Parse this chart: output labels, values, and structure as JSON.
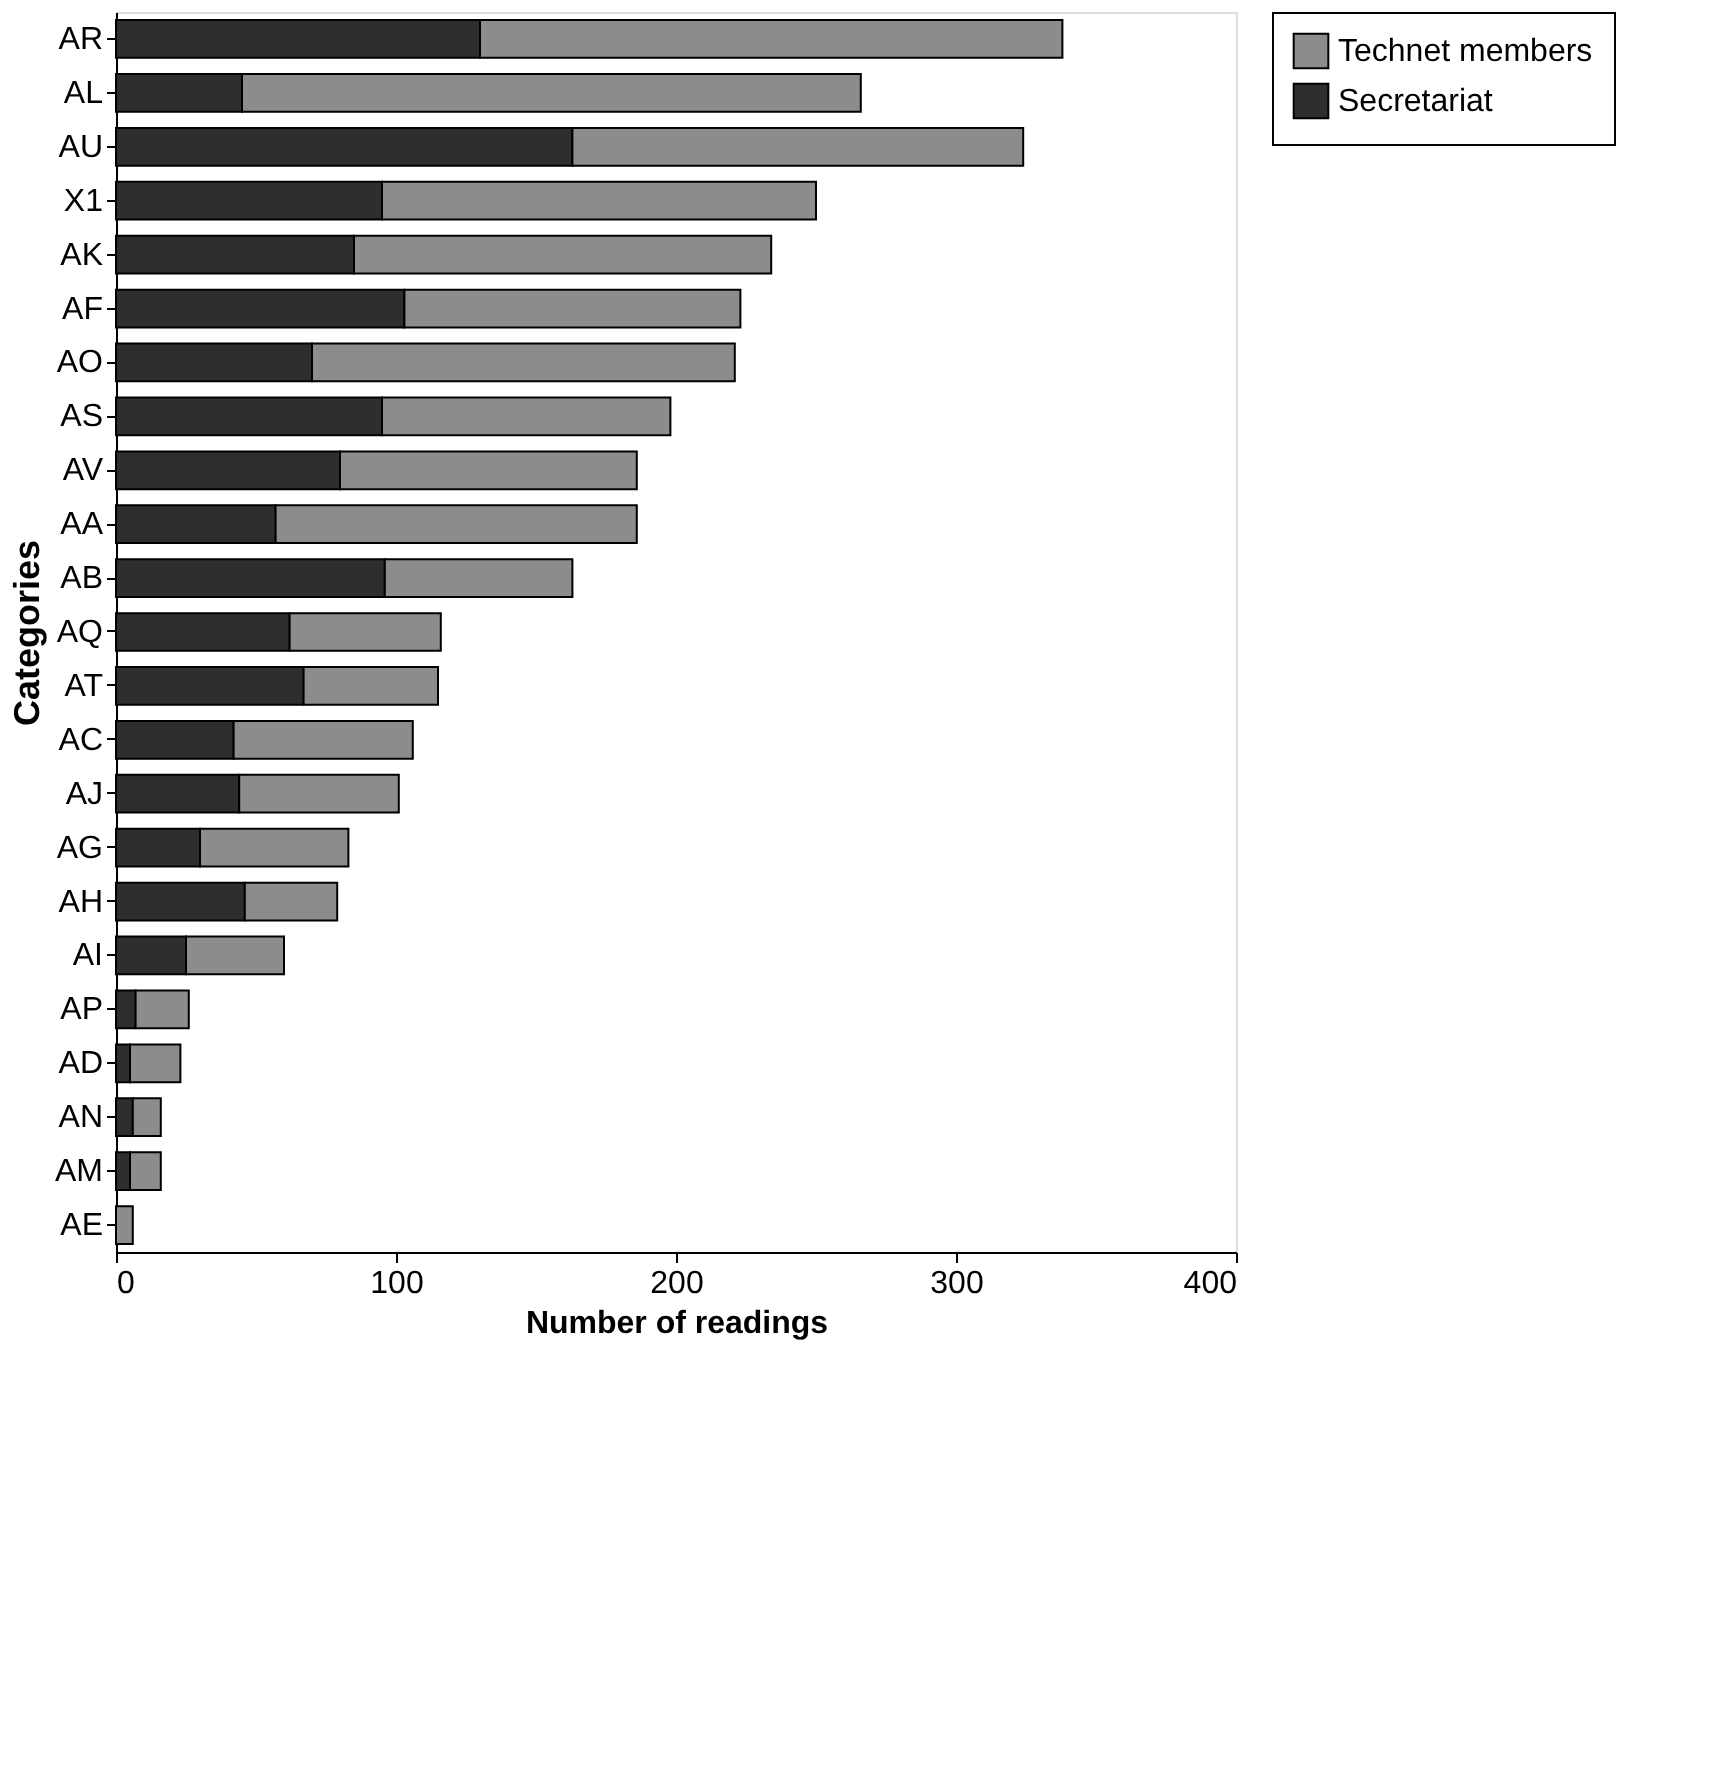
{
  "chart_data": {
    "type": "bar",
    "orientation": "horizontal",
    "stacked": true,
    "categories": [
      "AR",
      "AL",
      "AU",
      "X1",
      "AK",
      "AF",
      "AO",
      "AS",
      "AV",
      "AA",
      "AB",
      "AQ",
      "AT",
      "AC",
      "AJ",
      "AG",
      "AH",
      "AI",
      "AP",
      "AD",
      "AN",
      "AM",
      "AE"
    ],
    "series": [
      {
        "name": "Secretariat",
        "color": "#2e2e2e",
        "values": [
          130,
          45,
          163,
          95,
          85,
          103,
          70,
          95,
          80,
          57,
          96,
          62,
          67,
          42,
          44,
          30,
          46,
          25,
          7,
          5,
          6,
          5,
          0
        ]
      },
      {
        "name": "Technet members",
        "color": "#8c8c8c",
        "values": [
          208,
          221,
          161,
          155,
          149,
          120,
          151,
          103,
          106,
          129,
          67,
          54,
          48,
          64,
          57,
          53,
          33,
          35,
          19,
          18,
          10,
          11,
          6
        ]
      }
    ],
    "xlim": [
      0,
      400
    ],
    "xticks": [
      0,
      100,
      200,
      300,
      400
    ],
    "xlabel": "Number of readings",
    "ylabel": "Categories",
    "legend": "right",
    "grid": false
  }
}
